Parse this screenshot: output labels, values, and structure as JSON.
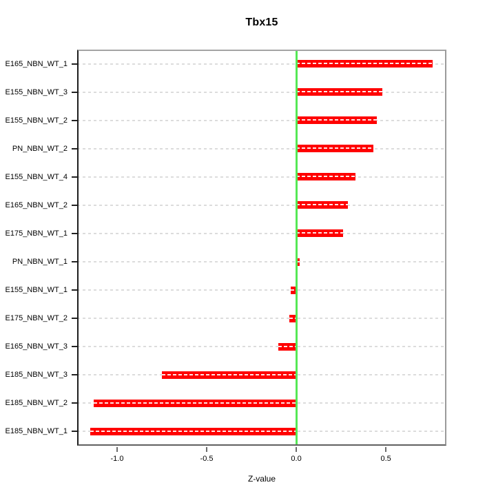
{
  "chart_data": {
    "type": "bar",
    "orientation": "horizontal",
    "title": "Tbx15",
    "xlabel": "Z-value",
    "categories": [
      "E165_NBN_WT_1",
      "E155_NBN_WT_3",
      "E155_NBN_WT_2",
      "PN_NBN_WT_2",
      "E155_NBN_WT_4",
      "E165_NBN_WT_2",
      "E175_NBN_WT_1",
      "PN_NBN_WT_1",
      "E155_NBN_WT_1",
      "E175_NBN_WT_2",
      "E165_NBN_WT_3",
      "E185_NBN_WT_3",
      "E185_NBN_WT_2",
      "E185_NBN_WT_1"
    ],
    "values": [
      0.76,
      0.48,
      0.45,
      0.43,
      0.33,
      0.29,
      0.26,
      0.02,
      -0.03,
      -0.04,
      -0.1,
      -0.75,
      -1.13,
      -1.15
    ],
    "xlim": [
      -1.223,
      0.838
    ],
    "xticks": [
      -1.0,
      -0.5,
      0.0,
      0.5
    ],
    "xtick_labels": [
      "-1.0",
      "-0.5",
      "0.0",
      "0.5"
    ],
    "zero_line": 0.0,
    "grid": "horizontal-dashed-per-category",
    "legend_position": "none",
    "colors": {
      "bar": "#ff0000",
      "bar_dash_overlay": "#ffffff",
      "zero_line": "#55e855",
      "grid": "#dcdcdc",
      "box": "#9a9a9a",
      "background": "#ffffff",
      "text": "#000000"
    }
  }
}
